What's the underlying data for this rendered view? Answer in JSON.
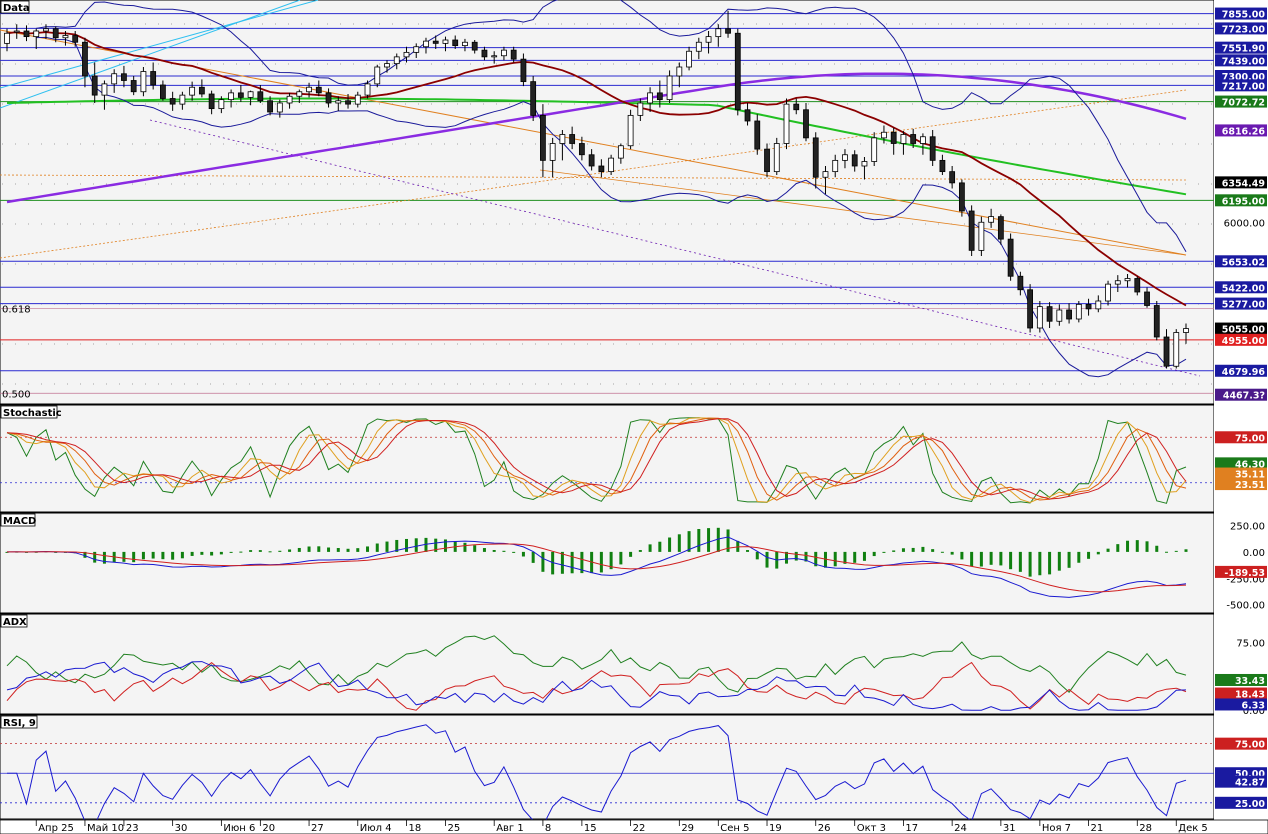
{
  "chart_data": [
    {
      "type": "candlestick",
      "title": "Data",
      "ylim": [
        4420,
        7940
      ],
      "price_levels": [
        {
          "label": "7855.00",
          "value": 7855,
          "bg": "#1a1aa0"
        },
        {
          "label": "7723.00",
          "value": 7723,
          "bg": "#1a1aa0"
        },
        {
          "label": "7551.90",
          "value": 7551.9,
          "bg": "#1a1aa0"
        },
        {
          "label": "7439.00",
          "value": 7439,
          "bg": "#1a1aa0"
        },
        {
          "label": "7300.00",
          "value": 7300,
          "bg": "#1a1aa0"
        },
        {
          "label": "7217.00",
          "value": 7217,
          "bg": "#1a1aa0"
        },
        {
          "label": "7072.72",
          "value": 7072.72,
          "bg": "#1a7a1a"
        },
        {
          "label": "6816.26",
          "value": 6816.26,
          "bg": "#6a1ab0"
        },
        {
          "label": "6354.49",
          "value": 6354.49,
          "bg": "#000000"
        },
        {
          "label": "6195.00",
          "value": 6195,
          "bg": "#1a7a1a"
        },
        {
          "label": "6000.00",
          "value": 6000,
          "bg": ""
        },
        {
          "label": "5653.02",
          "value": 5653.02,
          "bg": "#1a1aa0"
        },
        {
          "label": "5422.00",
          "value": 5422,
          "bg": "#1a1aa0"
        },
        {
          "label": "5277.00",
          "value": 5277,
          "bg": "#1a1aa0"
        },
        {
          "label": "5055.00",
          "value": 5055,
          "bg": "#000000"
        },
        {
          "label": "4955.00",
          "value": 4955,
          "bg": "#e02020"
        },
        {
          "label": "4679.96",
          "value": 4679.96,
          "bg": "#1a1aa0"
        },
        {
          "label": "4467.3?",
          "value": 4467,
          "bg": "#4a1a8a"
        }
      ],
      "fib_labels": [
        {
          "label": "0.618",
          "value": 5235
        },
        {
          "label": "0.500",
          "value": 4480
        }
      ],
      "x_ticks": [
        "Апр 25",
        "Май 10",
        "23",
        "30",
        "Июн 6",
        "20",
        "27",
        "Июл 4",
        "18",
        "25",
        "Авг 1",
        "8",
        "15",
        "22",
        "29",
        "Сен 5",
        "19",
        "26",
        "Окт 3",
        "17",
        "24",
        "31",
        "Ноя 7",
        "21",
        "28",
        "Дек 5"
      ],
      "candles": [
        [
          7590,
          7720,
          7520,
          7680
        ],
        [
          7690,
          7760,
          7630,
          7700
        ],
        [
          7700,
          7750,
          7610,
          7650
        ],
        [
          7650,
          7720,
          7540,
          7700
        ],
        [
          7700,
          7760,
          7630,
          7720
        ],
        [
          7720,
          7740,
          7600,
          7640
        ],
        [
          7640,
          7700,
          7570,
          7660
        ],
        [
          7660,
          7700,
          7560,
          7600
        ],
        [
          7600,
          7640,
          7200,
          7300
        ],
        [
          7300,
          7420,
          7060,
          7130
        ],
        [
          7130,
          7260,
          7000,
          7230
        ],
        [
          7230,
          7360,
          7150,
          7320
        ],
        [
          7320,
          7390,
          7200,
          7260
        ],
        [
          7260,
          7300,
          7130,
          7160
        ],
        [
          7160,
          7380,
          7120,
          7340
        ],
        [
          7340,
          7420,
          7180,
          7220
        ],
        [
          7220,
          7260,
          7080,
          7100
        ],
        [
          7100,
          7160,
          6990,
          7050
        ],
        [
          7050,
          7160,
          7000,
          7130
        ],
        [
          7130,
          7250,
          7080,
          7200
        ],
        [
          7200,
          7270,
          7110,
          7140
        ],
        [
          7140,
          7170,
          6960,
          7010
        ],
        [
          7010,
          7120,
          6970,
          7090
        ],
        [
          7090,
          7180,
          7020,
          7150
        ],
        [
          7150,
          7220,
          7070,
          7110
        ],
        [
          7110,
          7170,
          7040,
          7160
        ],
        [
          7160,
          7220,
          7060,
          7080
        ],
        [
          7080,
          7120,
          6950,
          6980
        ],
        [
          6980,
          7090,
          6930,
          7060
        ],
        [
          7060,
          7150,
          7010,
          7120
        ],
        [
          7120,
          7180,
          7060,
          7160
        ],
        [
          7160,
          7240,
          7110,
          7200
        ],
        [
          7200,
          7260,
          7120,
          7150
        ],
        [
          7150,
          7190,
          7020,
          7060
        ],
        [
          7060,
          7120,
          6990,
          7080
        ],
        [
          7080,
          7140,
          7010,
          7050
        ],
        [
          7050,
          7160,
          7020,
          7130
        ],
        [
          7130,
          7260,
          7100,
          7230
        ],
        [
          7230,
          7400,
          7200,
          7380
        ],
        [
          7380,
          7440,
          7330,
          7410
        ],
        [
          7410,
          7500,
          7360,
          7470
        ],
        [
          7470,
          7560,
          7420,
          7510
        ],
        [
          7510,
          7590,
          7460,
          7560
        ],
        [
          7560,
          7640,
          7500,
          7610
        ],
        [
          7610,
          7660,
          7540,
          7590
        ],
        [
          7590,
          7650,
          7520,
          7620
        ],
        [
          7620,
          7660,
          7540,
          7570
        ],
        [
          7570,
          7630,
          7520,
          7600
        ],
        [
          7600,
          7620,
          7500,
          7530
        ],
        [
          7530,
          7560,
          7440,
          7470
        ],
        [
          7470,
          7520,
          7410,
          7480
        ],
        [
          7480,
          7560,
          7440,
          7530
        ],
        [
          7530,
          7560,
          7420,
          7450
        ],
        [
          7450,
          7500,
          7210,
          7250
        ],
        [
          7250,
          7300,
          6900,
          6950
        ],
        [
          6950,
          7050,
          6400,
          6550
        ],
        [
          6550,
          6750,
          6400,
          6700
        ],
        [
          6700,
          6820,
          6550,
          6780
        ],
        [
          6780,
          6850,
          6650,
          6700
        ],
        [
          6700,
          6760,
          6550,
          6600
        ],
        [
          6600,
          6650,
          6460,
          6500
        ],
        [
          6500,
          6560,
          6400,
          6450
        ],
        [
          6450,
          6600,
          6420,
          6570
        ],
        [
          6570,
          6700,
          6520,
          6680
        ],
        [
          6680,
          7000,
          6650,
          6950
        ],
        [
          6950,
          7100,
          6900,
          7060
        ],
        [
          7060,
          7200,
          6980,
          7150
        ],
        [
          7150,
          7260,
          7020,
          7090
        ],
        [
          7090,
          7350,
          7060,
          7300
        ],
        [
          7300,
          7420,
          7200,
          7380
        ],
        [
          7380,
          7560,
          7350,
          7520
        ],
        [
          7520,
          7640,
          7450,
          7600
        ],
        [
          7600,
          7700,
          7500,
          7650
        ],
        [
          7650,
          7760,
          7560,
          7720
        ],
        [
          7720,
          7880,
          7640,
          7680
        ],
        [
          7680,
          7720,
          6950,
          7000
        ],
        [
          7000,
          7060,
          6860,
          6900
        ],
        [
          6900,
          6960,
          6600,
          6650
        ],
        [
          6650,
          6700,
          6400,
          6450
        ],
        [
          6450,
          6750,
          6420,
          6700
        ],
        [
          6700,
          7100,
          6650,
          7050
        ],
        [
          7050,
          7100,
          6960,
          7000
        ],
        [
          7000,
          7060,
          6720,
          6750
        ],
        [
          6750,
          6800,
          6300,
          6400
        ],
        [
          6400,
          6500,
          6250,
          6450
        ],
        [
          6450,
          6600,
          6400,
          6550
        ],
        [
          6550,
          6650,
          6480,
          6600
        ],
        [
          6600,
          6640,
          6450,
          6500
        ],
        [
          6500,
          6580,
          6380,
          6540
        ],
        [
          6540,
          6800,
          6500,
          6750
        ],
        [
          6750,
          6860,
          6700,
          6800
        ],
        [
          6800,
          6840,
          6600,
          6700
        ],
        [
          6700,
          6810,
          6600,
          6780
        ],
        [
          6780,
          6830,
          6660,
          6700
        ],
        [
          6700,
          6790,
          6600,
          6760
        ],
        [
          6760,
          6820,
          6500,
          6550
        ],
        [
          6550,
          6600,
          6420,
          6450
        ],
        [
          6450,
          6500,
          6300,
          6350
        ],
        [
          6350,
          6380,
          6050,
          6100
        ],
        [
          6100,
          6150,
          5700,
          5750
        ],
        [
          5750,
          6050,
          5700,
          6000
        ],
        [
          6000,
          6120,
          5950,
          6050
        ],
        [
          6050,
          6070,
          5800,
          5850
        ],
        [
          5850,
          5900,
          5480,
          5520
        ],
        [
          5520,
          5560,
          5350,
          5400
        ],
        [
          5400,
          5450,
          5020,
          5060
        ],
        [
          5060,
          5300,
          5020,
          5250
        ],
        [
          5250,
          5290,
          5060,
          5120
        ],
        [
          5120,
          5270,
          5080,
          5220
        ],
        [
          5220,
          5280,
          5100,
          5140
        ],
        [
          5140,
          5300,
          5110,
          5270
        ],
        [
          5270,
          5320,
          5170,
          5230
        ],
        [
          5230,
          5350,
          5200,
          5300
        ],
        [
          5300,
          5480,
          5260,
          5450
        ],
        [
          5450,
          5530,
          5380,
          5480
        ],
        [
          5480,
          5540,
          5420,
          5500
        ],
        [
          5500,
          5520,
          5350,
          5380
        ],
        [
          5380,
          5420,
          5240,
          5260
        ],
        [
          5260,
          5300,
          4950,
          4980
        ],
        [
          4980,
          5050,
          4700,
          4720
        ],
        [
          4720,
          5050,
          4700,
          5020
        ],
        [
          5020,
          5100,
          4920,
          5055
        ]
      ],
      "series": [
        {
          "name": "",
          "color": "#8b0000"
        },
        {
          "name": "",
          "color": "#22bb22"
        },
        {
          "name": "",
          "color": "#8a2be2"
        },
        {
          "name": "",
          "color": "#00008b"
        }
      ]
    },
    {
      "type": "line",
      "title": "Stochastic",
      "ylim": [
        -5,
        105
      ],
      "levels": [
        75,
        25
      ],
      "value_tags": [
        {
          "label": "75.00",
          "value": 75,
          "bg": "#cc2020"
        },
        {
          "label": "46.30",
          "value": 46.3,
          "bg": "#1a7a1a"
        },
        {
          "label": "35.11",
          "value": 35.11,
          "bg": "#e08020"
        },
        {
          "label": "23.51",
          "value": 23.51,
          "bg": "#e08020"
        }
      ]
    },
    {
      "type": "line",
      "title": "MACD",
      "ylim": [
        -560,
        340
      ],
      "y_ticks": [
        "250.00",
        "0.00",
        "-250.00",
        "-500.00"
      ],
      "value_tags": [
        {
          "label": "-189.53",
          "value": -189.53,
          "bg": "#cc2020"
        }
      ]
    },
    {
      "type": "line",
      "title": "ADX",
      "ylim": [
        -2,
        102
      ],
      "y_ticks": [
        "75.00",
        "0.00"
      ],
      "value_tags": [
        {
          "label": "33.43",
          "value": 33.43,
          "bg": "#1a7a1a"
        },
        {
          "label": "18.43",
          "value": 18.43,
          "bg": "#cc2020"
        },
        {
          "label": "6.33",
          "value": 6.33,
          "bg": "#1a1aa0"
        }
      ]
    },
    {
      "type": "line",
      "title": "RSI, 9",
      "ylim": [
        13,
        95
      ],
      "levels": [
        75,
        50,
        25
      ],
      "value_tags": [
        {
          "label": "75.00",
          "value": 75,
          "bg": "#cc2020"
        },
        {
          "label": "50.00",
          "value": 50,
          "bg": "#1a1aa0"
        },
        {
          "label": "42.87",
          "value": 42.87,
          "bg": "#1a1aa0"
        },
        {
          "label": "25.00",
          "value": 25,
          "bg": "#1a1aa0"
        }
      ]
    }
  ]
}
